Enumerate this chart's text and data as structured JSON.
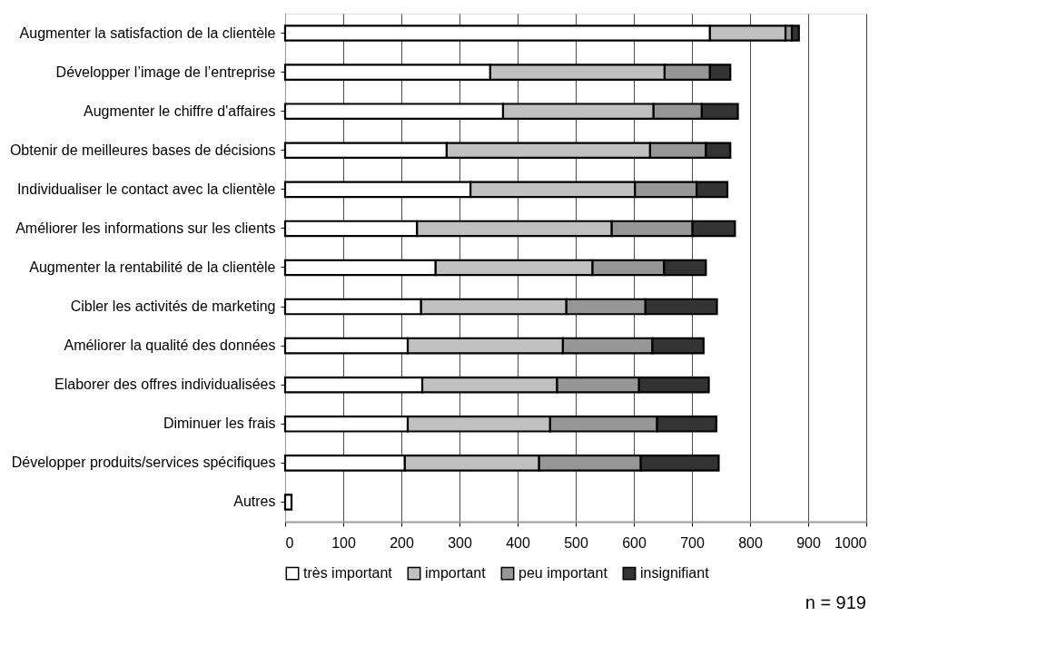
{
  "chart_data": {
    "type": "bar",
    "orientation": "horizontal",
    "stacked": true,
    "categories": [
      "Augmenter la satisfaction de la clientèle",
      "Développer l’image de l’entreprise",
      "Augmenter le chiffre d'affaires",
      "Obtenir de meilleures bases de décisions",
      "Individualiser le contact avec la clientèle",
      "Améliorer les informations sur les clients",
      "Augmenter la rentabilité de la clientèle",
      "Cibler les activités de marketing",
      "Améliorer la qualité des données",
      "Elaborer des offres individualisées",
      "Diminuer les frais",
      "Développer produits/services spécifiques",
      "Autres"
    ],
    "series": [
      {
        "name": "très important",
        "color": "#ffffff",
        "values": [
          731,
          353,
          375,
          278,
          319,
          227,
          259,
          234,
          211,
          236,
          211,
          206,
          11
        ]
      },
      {
        "name": "important",
        "color": "#c0c0c0",
        "values": [
          130,
          300,
          259,
          350,
          283,
          335,
          270,
          250,
          267,
          232,
          245,
          231,
          0
        ]
      },
      {
        "name": "peu important",
        "color": "#969696",
        "values": [
          11,
          78,
          83,
          96,
          106,
          139,
          123,
          136,
          154,
          141,
          184,
          175,
          0
        ]
      },
      {
        "name": "insignifiant",
        "color": "#333333",
        "values": [
          12,
          35,
          62,
          42,
          53,
          73,
          72,
          123,
          88,
          120,
          102,
          134,
          0
        ]
      }
    ],
    "xlim": [
      0,
      1000
    ],
    "xticks": [
      0,
      100,
      200,
      300,
      400,
      500,
      600,
      700,
      800,
      900,
      1000
    ],
    "grid": "x",
    "legend": "bottom",
    "annotations": [
      "n = 919"
    ]
  }
}
